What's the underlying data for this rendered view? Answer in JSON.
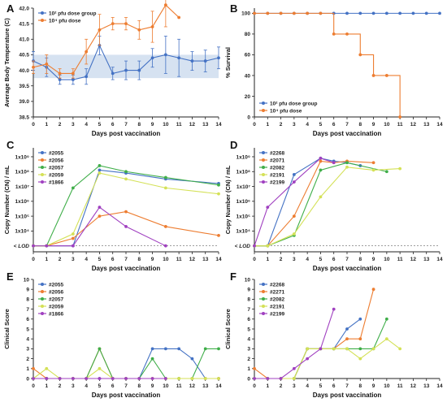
{
  "chart_data": [
    {
      "panel": "A",
      "type": "line",
      "ylabel": "Average Body Temperature (C)",
      "xlabel": "Days post vaccination",
      "xlim": [
        0,
        14
      ],
      "ylim": [
        38.5,
        42.0
      ],
      "xticks": [
        0,
        1,
        2,
        3,
        4,
        5,
        6,
        7,
        8,
        9,
        10,
        11,
        12,
        13,
        14
      ],
      "xtick_labels": [
        "0",
        "1",
        "2",
        "3",
        "4",
        "5",
        "6",
        "7",
        "8",
        "9",
        "10",
        "11",
        "12",
        "13",
        "14"
      ],
      "yticks": [
        38.5,
        39.0,
        39.5,
        40.0,
        40.5,
        41.0,
        41.5,
        42.0
      ],
      "ytick_labels": [
        "38.5",
        "39.0",
        "39.5",
        "40.0",
        "40.5",
        "41.0",
        "41.5",
        "42.0"
      ],
      "band": [
        39.75,
        40.5
      ],
      "band_color": "#c8d8ec",
      "legend_position": "top-left",
      "series": [
        {
          "name": "10² pfu dose group",
          "color": "#4472c4",
          "x": [
            0,
            1,
            2,
            3,
            4,
            5,
            6,
            7,
            8,
            9,
            10,
            11,
            12,
            13,
            14
          ],
          "y": [
            40.3,
            40.1,
            39.7,
            39.7,
            39.8,
            40.8,
            39.9,
            40.0,
            40.0,
            40.4,
            40.5,
            40.4,
            40.3,
            40.3,
            40.4
          ],
          "err": [
            0.3,
            0.3,
            0.15,
            0.15,
            0.25,
            0.3,
            0.2,
            0.3,
            0.3,
            0.3,
            0.6,
            0.6,
            0.3,
            0.35,
            0.35
          ]
        },
        {
          "name": "10⁴ pfu dose",
          "color": "#ed7d31",
          "x": [
            0,
            1,
            2,
            3,
            4,
            5,
            6,
            7,
            8,
            9,
            10,
            11
          ],
          "y": [
            40.1,
            40.2,
            39.9,
            39.9,
            40.6,
            41.3,
            41.5,
            41.5,
            41.3,
            41.4,
            42.1,
            41.7
          ],
          "err": [
            0.2,
            0.3,
            0.15,
            0.15,
            0.4,
            0.5,
            0.2,
            0.2,
            0.3,
            0.5,
            0.7,
            0.0
          ]
        }
      ]
    },
    {
      "panel": "B",
      "type": "line",
      "ylabel": "% Survival",
      "xlabel": "Days post vaccination",
      "xlim": [
        0,
        14
      ],
      "ylim": [
        0,
        105
      ],
      "xticks": [
        0,
        1,
        2,
        3,
        4,
        5,
        6,
        7,
        8,
        9,
        10,
        11,
        12,
        13,
        14
      ],
      "xtick_labels": [
        "0",
        "1",
        "2",
        "3",
        "4",
        "5",
        "6",
        "7",
        "8",
        "9",
        "10",
        "11",
        "12",
        "13",
        "14"
      ],
      "yticks": [
        0,
        20,
        40,
        60,
        80,
        100
      ],
      "ytick_labels": [
        "0",
        "20",
        "40",
        "60",
        "80",
        "100"
      ],
      "legend_position": "bottom-left",
      "series": [
        {
          "name": "10² pfu dose group",
          "color": "#4472c4",
          "x": [
            0,
            1,
            2,
            3,
            4,
            5,
            6,
            7,
            8,
            9,
            10,
            11,
            12,
            13,
            14
          ],
          "y": [
            100,
            100,
            100,
            100,
            100,
            100,
            100,
            100,
            100,
            100,
            100,
            100,
            100,
            100,
            100
          ],
          "step": true
        },
        {
          "name": "10⁴ pfu dose",
          "color": "#ed7d31",
          "x": [
            0,
            1,
            2,
            3,
            4,
            5,
            6,
            7,
            8,
            9,
            10,
            11
          ],
          "y": [
            100,
            100,
            100,
            100,
            100,
            100,
            80,
            80,
            60,
            40,
            40,
            0
          ],
          "step": true
        }
      ]
    },
    {
      "panel": "C",
      "type": "line",
      "ylabel": "Copy Number (CN) / mL",
      "xlabel": "Days post vaccination",
      "xlim": [
        0,
        14
      ],
      "ylim": [
        2.6,
        9.6
      ],
      "log_axis": true,
      "lod_value": 3.0,
      "lod_label": "< LOD",
      "xticks": [
        0,
        1,
        2,
        3,
        4,
        5,
        6,
        7,
        8,
        9,
        10,
        11,
        12,
        13,
        14
      ],
      "xtick_labels": [
        "0",
        "1",
        "2",
        "3",
        "4",
        "5",
        "6",
        "7",
        "8",
        "9",
        "10",
        "11",
        "12",
        "13",
        "14"
      ],
      "yticks": [
        4,
        5,
        6,
        7,
        8,
        9
      ],
      "ytick_labels": [
        "1x10⁴",
        "1x10⁵",
        "1x10⁶",
        "1x10⁷",
        "1x10⁸",
        "1x10⁹"
      ],
      "legend_position": "top-left",
      "series": [
        {
          "name": "#2055",
          "color": "#4472c4",
          "x": [
            0,
            1,
            3,
            5,
            7,
            10,
            14
          ],
          "y": [
            3.0,
            3.0,
            3.0,
            8.1,
            7.9,
            7.5,
            7.2
          ]
        },
        {
          "name": "#2056",
          "color": "#ed7d31",
          "x": [
            0,
            1,
            3,
            5,
            7,
            10,
            14
          ],
          "y": [
            3.0,
            3.0,
            3.5,
            5.0,
            5.3,
            4.3,
            3.7
          ]
        },
        {
          "name": "#2057",
          "color": "#3fae49",
          "x": [
            0,
            1,
            3,
            5,
            7,
            10,
            14
          ],
          "y": [
            3.0,
            3.0,
            6.9,
            8.4,
            8.0,
            7.6,
            7.1
          ]
        },
        {
          "name": "#2059",
          "color": "#d4e157",
          "x": [
            0,
            1,
            3,
            5,
            7,
            10,
            14
          ],
          "y": [
            3.0,
            3.0,
            3.8,
            7.9,
            7.5,
            6.9,
            6.5
          ]
        },
        {
          "name": "#1866",
          "color": "#a040c0",
          "x": [
            0,
            1,
            3,
            5,
            7,
            10
          ],
          "y": [
            3.0,
            3.0,
            3.0,
            5.6,
            4.3,
            3.0
          ]
        }
      ]
    },
    {
      "panel": "D",
      "type": "line",
      "ylabel": "Copy Number (CN) / mL",
      "xlabel": "Days post vaccination",
      "xlim": [
        0,
        14
      ],
      "ylim": [
        2.6,
        9.6
      ],
      "log_axis": true,
      "lod_value": 3.0,
      "lod_label": "< LOD",
      "xticks": [
        0,
        1,
        2,
        3,
        4,
        5,
        6,
        7,
        8,
        9,
        10,
        11,
        12,
        13,
        14
      ],
      "xtick_labels": [
        "0",
        "1",
        "2",
        "3",
        "4",
        "5",
        "6",
        "7",
        "8",
        "9",
        "10",
        "11",
        "12",
        "13",
        "14"
      ],
      "yticks": [
        4,
        5,
        6,
        7,
        8,
        9
      ],
      "ytick_labels": [
        "1x10⁴",
        "1x10⁵",
        "1x10⁶",
        "1x10⁷",
        "1x10⁸",
        "1x10⁹"
      ],
      "legend_position": "top-left",
      "series": [
        {
          "name": "#2268",
          "color": "#4472c4",
          "x": [
            0,
            1,
            3,
            5,
            6,
            7,
            8
          ],
          "y": [
            3.0,
            3.0,
            7.8,
            8.9,
            8.7,
            8.6,
            8.4
          ]
        },
        {
          "name": "#2071",
          "color": "#ed7d31",
          "x": [
            0,
            1,
            3,
            5,
            6,
            7,
            9
          ],
          "y": [
            3.0,
            3.0,
            5.0,
            8.7,
            8.6,
            8.7,
            8.6
          ]
        },
        {
          "name": "#2082",
          "color": "#3fae49",
          "x": [
            0,
            1,
            3,
            5,
            7,
            10
          ],
          "y": [
            3.0,
            3.0,
            3.7,
            8.1,
            8.6,
            8.0
          ]
        },
        {
          "name": "#2191",
          "color": "#d4e157",
          "x": [
            0,
            1,
            3,
            5,
            7,
            9,
            11
          ],
          "y": [
            3.0,
            3.0,
            3.8,
            6.3,
            8.3,
            8.1,
            8.2
          ]
        },
        {
          "name": "#2199",
          "color": "#a040c0",
          "x": [
            0,
            1,
            3,
            5,
            6
          ],
          "y": [
            3.0,
            5.6,
            7.3,
            8.9,
            8.6
          ]
        }
      ]
    },
    {
      "panel": "E",
      "type": "line",
      "ylabel": "Clinical Score",
      "xlabel": "Days post vaccination",
      "xlim": [
        0,
        14
      ],
      "ylim": [
        0,
        10
      ],
      "xticks": [
        0,
        1,
        2,
        3,
        4,
        5,
        6,
        7,
        8,
        9,
        10,
        11,
        12,
        13,
        14
      ],
      "xtick_labels": [
        "0",
        "1",
        "2",
        "3",
        "4",
        "5",
        "6",
        "7",
        "8",
        "9",
        "10",
        "11",
        "12",
        "13",
        "14"
      ],
      "yticks": [
        0,
        1,
        2,
        3,
        4,
        5,
        6,
        7,
        8,
        9,
        10
      ],
      "ytick_labels": [
        "0",
        "1",
        "2",
        "3",
        "4",
        "5",
        "6",
        "7",
        "8",
        "9",
        "10"
      ],
      "legend_position": "top-left",
      "series": [
        {
          "name": "#2055",
          "color": "#4472c4",
          "x": [
            0,
            1,
            2,
            3,
            4,
            5,
            6,
            7,
            8,
            9,
            10,
            11,
            12,
            13,
            14
          ],
          "y": [
            0,
            0,
            0,
            0,
            0,
            0,
            0,
            0,
            0,
            3,
            3,
            3,
            2,
            0,
            0
          ]
        },
        {
          "name": "#2056",
          "color": "#ed7d31",
          "x": [
            0,
            1,
            2,
            3,
            4,
            5,
            6,
            7,
            8,
            9,
            10,
            11,
            12,
            13,
            14
          ],
          "y": [
            1,
            0,
            0,
            0,
            0,
            3,
            0,
            0,
            0,
            0,
            0,
            0,
            0,
            0,
            0
          ]
        },
        {
          "name": "#2057",
          "color": "#3fae49",
          "x": [
            0,
            1,
            2,
            3,
            4,
            5,
            6,
            7,
            8,
            9,
            10,
            11,
            12,
            13,
            14
          ],
          "y": [
            0,
            0,
            0,
            0,
            0,
            3,
            0,
            0,
            0,
            2,
            0,
            0,
            0,
            3,
            3
          ]
        },
        {
          "name": "#2059",
          "color": "#d4e157",
          "x": [
            0,
            1,
            2,
            3,
            4,
            5,
            6,
            7,
            8,
            9,
            10,
            11,
            12,
            13,
            14
          ],
          "y": [
            0,
            1,
            0,
            0,
            0,
            1,
            0,
            0,
            0,
            0,
            0,
            0,
            0,
            0,
            0
          ]
        },
        {
          "name": "#1866",
          "color": "#a040c0",
          "x": [
            0,
            1,
            2,
            3,
            4,
            5,
            6,
            7,
            8,
            9,
            10
          ],
          "y": [
            0,
            0,
            0,
            0,
            0,
            0,
            0,
            0,
            0,
            0,
            0
          ]
        }
      ]
    },
    {
      "panel": "F",
      "type": "line",
      "ylabel": "Clinical Score",
      "xlabel": "Days post vaccination",
      "xlim": [
        0,
        14
      ],
      "ylim": [
        0,
        10
      ],
      "xticks": [
        0,
        1,
        2,
        3,
        4,
        5,
        6,
        7,
        8,
        9,
        10,
        11,
        12,
        13,
        14
      ],
      "xtick_labels": [
        "0",
        "1",
        "2",
        "3",
        "4",
        "5",
        "6",
        "7",
        "8",
        "9",
        "10",
        "11",
        "12",
        "13",
        "14"
      ],
      "yticks": [
        0,
        1,
        2,
        3,
        4,
        5,
        6,
        7,
        8,
        9,
        10
      ],
      "ytick_labels": [
        "0",
        "1",
        "2",
        "3",
        "4",
        "5",
        "6",
        "7",
        "8",
        "9",
        "10"
      ],
      "legend_position": "top-left",
      "series": [
        {
          "name": "#2268",
          "color": "#4472c4",
          "x": [
            0,
            1,
            2,
            3,
            4,
            5,
            6,
            7,
            8
          ],
          "y": [
            0,
            0,
            0,
            0,
            3,
            3,
            3,
            5,
            6
          ]
        },
        {
          "name": "#2271",
          "color": "#ed7d31",
          "x": [
            0,
            1,
            2,
            3,
            4,
            5,
            6,
            7,
            8,
            9
          ],
          "y": [
            1,
            0,
            0,
            0,
            3,
            3,
            3,
            4,
            4,
            9
          ]
        },
        {
          "name": "#2082",
          "color": "#3fae49",
          "x": [
            0,
            1,
            2,
            3,
            4,
            5,
            6,
            7,
            8,
            9,
            10
          ],
          "y": [
            0,
            0,
            0,
            0,
            3,
            3,
            3,
            3,
            3,
            3,
            6
          ]
        },
        {
          "name": "#2191",
          "color": "#d4e157",
          "x": [
            0,
            1,
            2,
            3,
            4,
            5,
            6,
            7,
            8,
            9,
            10,
            11
          ],
          "y": [
            0,
            0,
            0,
            0,
            3,
            3,
            3,
            3,
            2,
            3,
            4,
            3
          ]
        },
        {
          "name": "#2199",
          "color": "#a040c0",
          "x": [
            0,
            1,
            2,
            3,
            4,
            5,
            6
          ],
          "y": [
            0,
            0,
            0,
            1,
            2,
            3,
            7
          ]
        }
      ]
    }
  ]
}
